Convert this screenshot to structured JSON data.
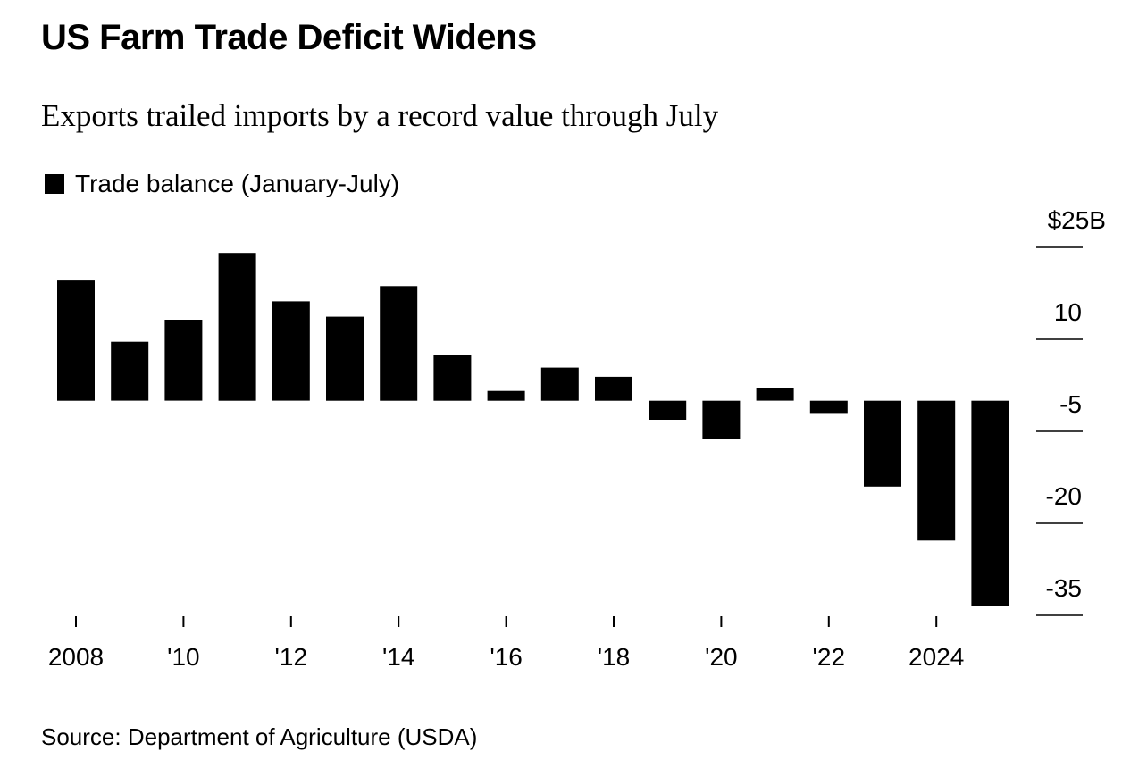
{
  "title": "US Farm Trade Deficit Widens",
  "subtitle": "Exports trailed imports by a record value through July",
  "source": "Source: Department of Agriculture (USDA)",
  "colors": {
    "bar": "#000000",
    "text": "#000000",
    "background": "#ffffff"
  },
  "chart_data": {
    "type": "bar",
    "title": "US Farm Trade Deficit Widens",
    "subtitle": "Exports trailed imports by a record value through July",
    "legend": {
      "position": "top-left",
      "entries": [
        "Trade balance (January-July)"
      ]
    },
    "categories": [
      "2008",
      "2009",
      "2010",
      "2011",
      "2012",
      "2013",
      "2014",
      "2015",
      "2016",
      "2017",
      "2018",
      "2019",
      "2020",
      "2021",
      "2022",
      "2023",
      "2024",
      "2025"
    ],
    "series": [
      {
        "name": "Trade balance (January-July)",
        "values": [
          19.6,
          9.6,
          13.2,
          24.1,
          16.2,
          13.7,
          18.7,
          7.5,
          1.6,
          5.4,
          3.9,
          -3.1,
          -6.3,
          2.1,
          -2.0,
          -14.0,
          -22.8,
          -33.4
        ]
      }
    ],
    "yaxis": {
      "position": "right",
      "ticks": [
        25,
        10,
        -5,
        -20,
        -35
      ],
      "tick_labels": [
        "$25B",
        "10",
        "-5",
        "-20",
        "-35"
      ],
      "ylim": [
        -35,
        25
      ]
    },
    "xaxis": {
      "ticks": [
        "2008",
        "2010",
        "2012",
        "2014",
        "2016",
        "2018",
        "2020",
        "2022",
        "2024"
      ],
      "tick_labels": [
        "2008",
        "'10",
        "'12",
        "'14",
        "'16",
        "'18",
        "'20",
        "'22",
        "2024"
      ]
    },
    "grid": false,
    "xlabel": "",
    "ylabel": ""
  }
}
